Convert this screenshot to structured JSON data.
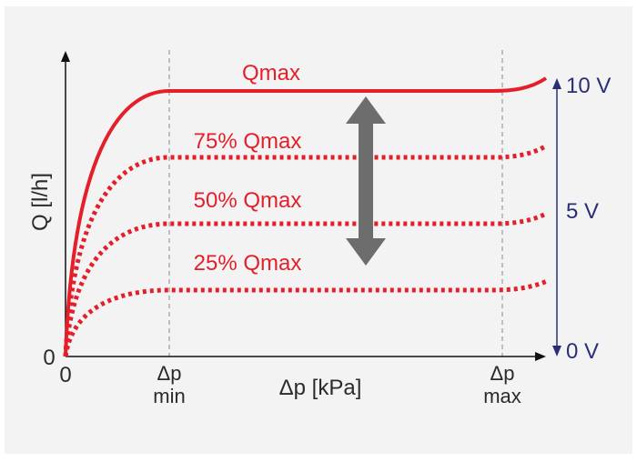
{
  "axes": {
    "x_label": "Δp [kPa]",
    "y_label": "Q [l/h]",
    "x_zero": "0",
    "y_zero": "0",
    "dp_min": {
      "top": "Δp",
      "bottom": "min"
    },
    "dp_max": {
      "top": "Δp",
      "bottom": "max"
    }
  },
  "curves": [
    {
      "label": "Qmax",
      "fraction": 1.0,
      "style": "solid"
    },
    {
      "label": "75% Qmax",
      "fraction": 0.75,
      "style": "dotted"
    },
    {
      "label": "50% Qmax",
      "fraction": 0.5,
      "style": "dotted"
    },
    {
      "label": "25% Qmax",
      "fraction": 0.25,
      "style": "dotted"
    }
  ],
  "voltage_scale": {
    "top": "10 V",
    "mid": "5 V",
    "bottom": "0 V"
  },
  "colors": {
    "curve": "#e41f2a",
    "voltage_axis": "#2a2f75",
    "adjust_arrow": "#6d6d6d",
    "panel": "#f3f3f4"
  },
  "icons": {
    "adjust_arrow": "double-headed-vertical-arrow"
  }
}
